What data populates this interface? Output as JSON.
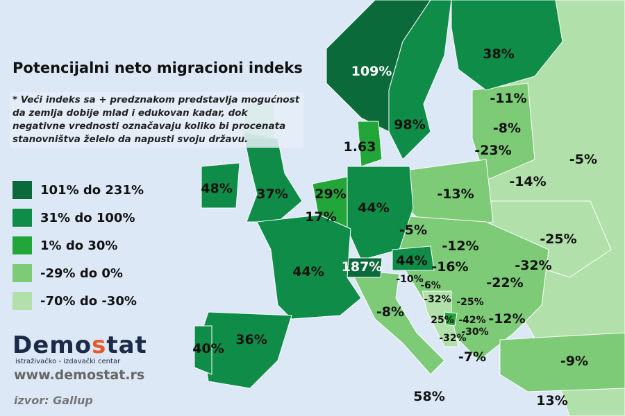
{
  "title": "Potencijalni neto migracioni indeks",
  "note": "* Veći indeks sa + predznakom predstavlja mogućnost da zemlja dobije mlad i edukovan kadar, dok negativne vrednosti označavaju koliko bi procenata stanovništva želelo da napusti svoju državu.",
  "legend": [
    {
      "label": "101% do 231%",
      "color": "#0b6a3a"
    },
    {
      "label": "31% do 100%",
      "color": "#0e8c48"
    },
    {
      "label": "1% do 30%",
      "color": "#22a63a"
    },
    {
      "label": "-29% do 0%",
      "color": "#7dca77"
    },
    {
      "label": "-70% do  -30%",
      "color": "#b2e0aa"
    }
  ],
  "colors": {
    "sea": "#dce8f5"
  },
  "countries": {
    "norway": "109%",
    "sweden": "98%",
    "finland": "38%",
    "denmark": "1.63",
    "ireland": "48%",
    "uk": "37%",
    "netherlands": "29%",
    "belgium": "17%",
    "germany": "44%",
    "france": "44%",
    "switzerland": "187%",
    "austria": "44%",
    "spain": "36%",
    "portugal": "40%",
    "italy": "-8%",
    "malta": "58%",
    "estonia": "-11%",
    "latvia": "-8%",
    "lithuania": "-23%",
    "russia": "-5%",
    "belarus": "-14%",
    "poland": "-13%",
    "czechia": "-5%",
    "slovakia": "-12%",
    "ukraine": "-25%",
    "hungary": "-16%",
    "moldova": "-32%",
    "romania": "-22%",
    "slovenia": "-10%",
    "croatia": "-6%",
    "bosnia": "-32%",
    "serbia": "-25%",
    "montenegro": "25%",
    "kosovo": "-42%",
    "macedonia": "-30%",
    "albania": "-32%",
    "bulgaria": "-12%",
    "greece": "-7%",
    "turkey": "-9%",
    "cyprus": "13%"
  },
  "logo": {
    "name": "Demostat",
    "tagline": "istraživačko - izdavački  centar"
  },
  "url": "www.demostat.rs",
  "source": "izvor: Gallup"
}
